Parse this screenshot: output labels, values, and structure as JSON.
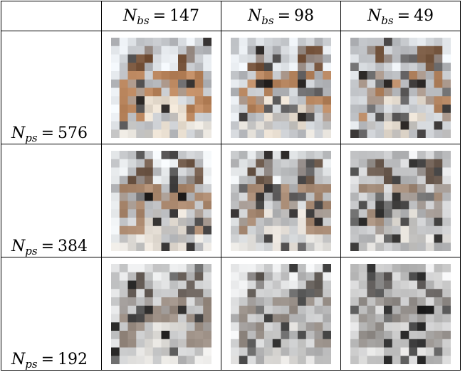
{
  "table": {
    "columns": [
      {
        "symbol": "N",
        "subscript": "bs",
        "equals": "=",
        "value": "147"
      },
      {
        "symbol": "N",
        "subscript": "bs",
        "equals": "=",
        "value": "98"
      },
      {
        "symbol": "N",
        "subscript": "bs",
        "equals": "=",
        "value": "49"
      }
    ],
    "rows": [
      {
        "symbol": "N",
        "subscript": "ps",
        "equals": "=",
        "value": "576"
      },
      {
        "symbol": "N",
        "subscript": "ps",
        "equals": "=",
        "value": "384"
      },
      {
        "symbol": "N",
        "subscript": "ps",
        "equals": "=",
        "value": "192"
      }
    ]
  },
  "colors": {
    "fur": "#b9855d",
    "fur_dark": "#7a573e",
    "snow": "#e9edf1",
    "gray_patch": "#a8aaae",
    "dark_patch": "#2a2624"
  }
}
